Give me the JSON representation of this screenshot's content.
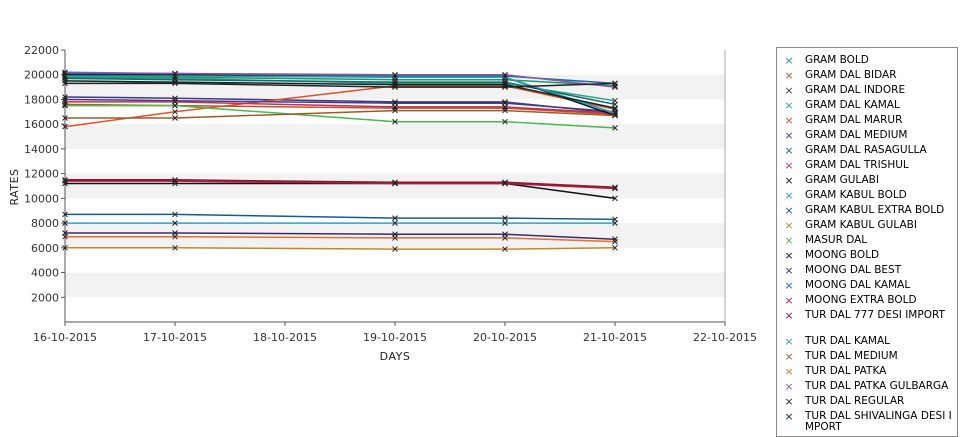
{
  "chart_data": {
    "type": "line",
    "title": "",
    "xlabel": "DAYS",
    "ylabel": "RATES",
    "ylim": [
      0,
      22000
    ],
    "yticks": [
      2000,
      4000,
      6000,
      8000,
      10000,
      12000,
      14000,
      16000,
      18000,
      20000,
      22000
    ],
    "ytick_labels": [
      "2000",
      "4000",
      "6000",
      "8000",
      "10000",
      "12000",
      "14000",
      "16000",
      "18000",
      "20000",
      "22000"
    ],
    "x_dates": [
      "16-10-2015",
      "17-10-2015",
      "18-10-2015",
      "19-10-2015",
      "20-10-2015",
      "21-10-2015",
      "22-10-2015"
    ],
    "x": [
      "16-10-2015",
      "17-10-2015",
      "19-10-2015",
      "20-10-2015",
      "21-10-2015"
    ],
    "grid": "alternating horizontal bands",
    "legend_position": "right",
    "series": [
      {
        "name": "GRAM BOLD",
        "color": "#1a9a6a",
        "values": [
          19800,
          19800,
          19600,
          19600,
          19100
        ]
      },
      {
        "name": "GRAM DAL BIDAR",
        "color": "#c0522a",
        "values": [
          17600,
          17500,
          17300,
          17300,
          16800
        ]
      },
      {
        "name": "GRAM DAL INDORE",
        "color": "#3a3a8c",
        "values": [
          18200,
          18100,
          17800,
          17800,
          16900
        ]
      },
      {
        "name": "GRAM DAL KAMAL",
        "color": "#2aa88a",
        "values": [
          19700,
          19700,
          19300,
          19300,
          17900
        ]
      },
      {
        "name": "GRAM DAL MARUR",
        "color": "#e0502a",
        "values": [
          15800,
          17000,
          19100,
          19100,
          17200
        ]
      },
      {
        "name": "GRAM DAL MEDIUM",
        "color": "#4a3a7a",
        "values": [
          18000,
          17900,
          17700,
          17700,
          17000
        ]
      },
      {
        "name": "GRAM DAL RASAGULLA",
        "color": "#1a6a6a",
        "values": [
          19700,
          19600,
          19400,
          19400,
          17600
        ]
      },
      {
        "name": "GRAM DAL TRISHUL",
        "color": "#c0305a",
        "values": [
          17800,
          17800,
          17400,
          17400,
          16900
        ]
      },
      {
        "name": "GRAM GULABI",
        "color": "#111133",
        "values": [
          20000,
          20000,
          19800,
          19800,
          16700
        ]
      },
      {
        "name": "GRAM KABUL BOLD",
        "color": "#29a0d0",
        "values": [
          8000,
          8000,
          8000,
          8000,
          8000
        ]
      },
      {
        "name": "GRAM KABUL EXTRA BOLD",
        "color": "#1a5a8a",
        "values": [
          8700,
          8700,
          8400,
          8400,
          8300
        ]
      },
      {
        "name": "GRAM KABUL GULABI",
        "color": "#c0882a",
        "values": [
          6000,
          6000,
          5900,
          5900,
          6000
        ]
      },
      {
        "name": "MASUR DAL",
        "color": "#4ab84a",
        "values": [
          17500,
          17500,
          16200,
          16200,
          15700
        ]
      },
      {
        "name": "MOONG BOLD",
        "color": "#111111",
        "values": [
          11200,
          11200,
          11200,
          11200,
          10000
        ]
      },
      {
        "name": "MOONG DAL BEST",
        "color": "#3a2a6a",
        "values": [
          7200,
          7200,
          7100,
          7100,
          6700
        ]
      },
      {
        "name": "MOONG DAL KAMAL",
        "color": "#1a6aa0",
        "values": [
          20100,
          20100,
          19900,
          19900,
          19300
        ]
      },
      {
        "name": "MOONG EXTRA BOLD",
        "color": "#b01a4a",
        "values": [
          11400,
          11400,
          11200,
          11200,
          10800
        ]
      },
      {
        "name": "TUR DAL  777 DESI IMPORT",
        "color": "#8a1a2a",
        "values": [
          11500,
          11500,
          11300,
          11300,
          10900
        ]
      },
      {
        "name": "TUR DAL KAMAL",
        "color": "#2aa0a0",
        "values": [
          19900,
          19900,
          19800,
          19800,
          16900
        ]
      },
      {
        "name": "TUR DAL MEDIUM",
        "color": "#a05a2a",
        "values": [
          16500,
          16500,
          17100,
          17100,
          16700
        ]
      },
      {
        "name": "TUR DAL PATKA",
        "color": "#e07030",
        "values": [
          6900,
          6900,
          6800,
          6800,
          6500
        ]
      },
      {
        "name": "TUR DAL PATKA GULBARGA",
        "color": "#8a5aa0",
        "values": [
          20200,
          20100,
          20000,
          20000,
          19000
        ]
      },
      {
        "name": "TUR DAL REGULAR",
        "color": "#222222",
        "values": [
          19300,
          19300,
          19000,
          19000,
          19300
        ]
      },
      {
        "name": "TUR DAL SHIVALINGA DESI IMPORT",
        "color": "#0a2a2a",
        "values": [
          19500,
          19400,
          19200,
          19200,
          17300
        ]
      }
    ]
  }
}
